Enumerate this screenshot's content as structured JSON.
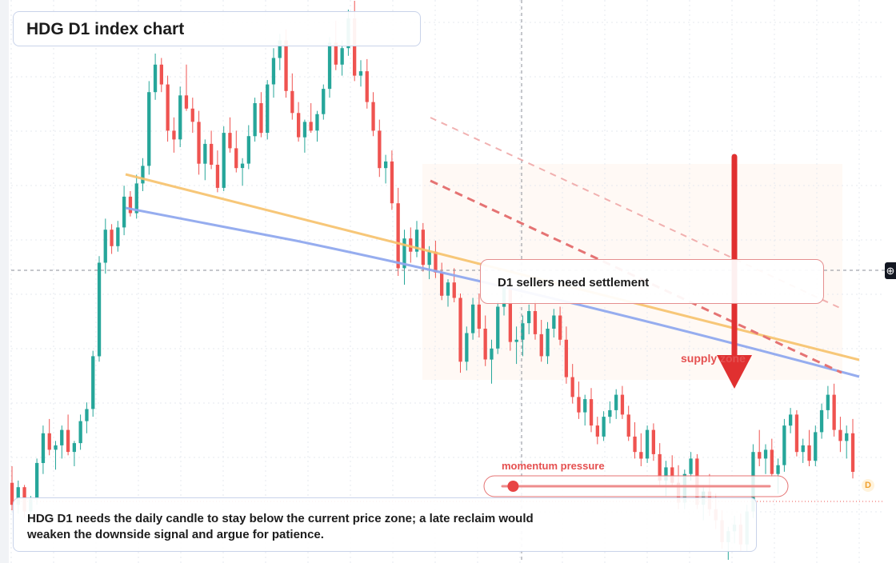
{
  "title": "HDG D1 index chart",
  "annotations": {
    "sellers_note": "D1 sellers need settlement",
    "supply_label": "supply zone",
    "momentum_label": "momentum pressure",
    "summary": "HDG D1 needs the daily candle to stay below the current price zone; a late reclaim would weaken the downside signal and argue for patience."
  },
  "badge": "D",
  "crosshair_icon": "crosshair-plus-icon",
  "colors": {
    "up": "#26a69a",
    "down": "#ef5350",
    "ma_fast": "#f7c26b",
    "ma_slow": "#90a9ee",
    "arrow": "#e03030",
    "channel": "#e57373"
  },
  "momentum_level": 0.04,
  "chart_data": {
    "type": "candlestick",
    "interval": "D1",
    "ohlc": [
      [
        1210,
        1225,
        1185,
        1190
      ],
      [
        1190,
        1212,
        1182,
        1206
      ],
      [
        1206,
        1208,
        1178,
        1184
      ],
      [
        1184,
        1198,
        1172,
        1195
      ],
      [
        1195,
        1232,
        1190,
        1228
      ],
      [
        1228,
        1262,
        1218,
        1255
      ],
      [
        1255,
        1268,
        1235,
        1240
      ],
      [
        1240,
        1248,
        1222,
        1244
      ],
      [
        1244,
        1262,
        1232,
        1258
      ],
      [
        1258,
        1272,
        1235,
        1238
      ],
      [
        1238,
        1248,
        1225,
        1246
      ],
      [
        1246,
        1272,
        1240,
        1266
      ],
      [
        1266,
        1283,
        1255,
        1277
      ],
      [
        1277,
        1330,
        1270,
        1325
      ],
      [
        1325,
        1416,
        1320,
        1410
      ],
      [
        1410,
        1450,
        1400,
        1440
      ],
      [
        1440,
        1445,
        1418,
        1425
      ],
      [
        1425,
        1448,
        1420,
        1442
      ],
      [
        1442,
        1480,
        1435,
        1470
      ],
      [
        1470,
        1475,
        1452,
        1455
      ],
      [
        1455,
        1490,
        1450,
        1482
      ],
      [
        1482,
        1505,
        1475,
        1498
      ],
      [
        1498,
        1575,
        1490,
        1565
      ],
      [
        1565,
        1600,
        1558,
        1590
      ],
      [
        1590,
        1596,
        1565,
        1572
      ],
      [
        1572,
        1580,
        1520,
        1530
      ],
      [
        1530,
        1542,
        1510,
        1522
      ],
      [
        1522,
        1570,
        1515,
        1562
      ],
      [
        1562,
        1590,
        1548,
        1550
      ],
      [
        1550,
        1560,
        1528,
        1538
      ],
      [
        1538,
        1548,
        1490,
        1500
      ],
      [
        1500,
        1522,
        1485,
        1518
      ],
      [
        1518,
        1530,
        1495,
        1499
      ],
      [
        1499,
        1512,
        1474,
        1478
      ],
      [
        1478,
        1534,
        1475,
        1528
      ],
      [
        1528,
        1542,
        1510,
        1514
      ],
      [
        1514,
        1530,
        1492,
        1496
      ],
      [
        1496,
        1505,
        1480,
        1500
      ],
      [
        1500,
        1535,
        1495,
        1525
      ],
      [
        1525,
        1560,
        1520,
        1555
      ],
      [
        1555,
        1565,
        1524,
        1528
      ],
      [
        1528,
        1576,
        1522,
        1572
      ],
      [
        1572,
        1605,
        1560,
        1596
      ],
      [
        1596,
        1618,
        1585,
        1612
      ],
      [
        1612,
        1622,
        1560,
        1566
      ],
      [
        1566,
        1582,
        1540,
        1546
      ],
      [
        1546,
        1556,
        1520,
        1524
      ],
      [
        1524,
        1540,
        1510,
        1538
      ],
      [
        1538,
        1555,
        1528,
        1530
      ],
      [
        1530,
        1548,
        1520,
        1545
      ],
      [
        1545,
        1572,
        1540,
        1568
      ],
      [
        1568,
        1615,
        1560,
        1610
      ],
      [
        1610,
        1630,
        1585,
        1590
      ],
      [
        1590,
        1612,
        1580,
        1605
      ],
      [
        1605,
        1640,
        1598,
        1632
      ],
      [
        1632,
        1648,
        1575,
        1580
      ],
      [
        1580,
        1594,
        1570,
        1584
      ],
      [
        1584,
        1595,
        1550,
        1556
      ],
      [
        1556,
        1565,
        1525,
        1530
      ],
      [
        1530,
        1540,
        1488,
        1496
      ],
      [
        1496,
        1508,
        1482,
        1502
      ],
      [
        1502,
        1512,
        1458,
        1464
      ],
      [
        1464,
        1478,
        1398,
        1405
      ],
      [
        1405,
        1440,
        1390,
        1432
      ],
      [
        1432,
        1442,
        1410,
        1420
      ],
      [
        1420,
        1448,
        1415,
        1440
      ],
      [
        1440,
        1446,
        1402,
        1408
      ],
      [
        1408,
        1425,
        1395,
        1420
      ],
      [
        1420,
        1430,
        1396,
        1401
      ],
      [
        1401,
        1410,
        1376,
        1380
      ],
      [
        1380,
        1395,
        1370,
        1392
      ],
      [
        1392,
        1405,
        1374,
        1378
      ],
      [
        1378,
        1382,
        1310,
        1320
      ],
      [
        1320,
        1352,
        1312,
        1346
      ],
      [
        1346,
        1378,
        1340,
        1372
      ],
      [
        1372,
        1382,
        1342,
        1350
      ],
      [
        1350,
        1362,
        1316,
        1322
      ],
      [
        1322,
        1340,
        1300,
        1332
      ],
      [
        1332,
        1375,
        1327,
        1370
      ],
      [
        1370,
        1392,
        1362,
        1388
      ],
      [
        1388,
        1394,
        1330,
        1338
      ],
      [
        1338,
        1352,
        1318,
        1340
      ],
      [
        1340,
        1362,
        1325,
        1355
      ],
      [
        1355,
        1372,
        1345,
        1366
      ],
      [
        1366,
        1376,
        1340,
        1345
      ],
      [
        1345,
        1358,
        1320,
        1325
      ],
      [
        1325,
        1356,
        1318,
        1350
      ],
      [
        1350,
        1368,
        1342,
        1362
      ],
      [
        1362,
        1370,
        1335,
        1340
      ],
      [
        1340,
        1352,
        1300,
        1306
      ],
      [
        1306,
        1318,
        1282,
        1288
      ],
      [
        1288,
        1302,
        1268,
        1274
      ],
      [
        1274,
        1290,
        1262,
        1286
      ],
      [
        1286,
        1296,
        1256,
        1262
      ],
      [
        1262,
        1270,
        1245,
        1252
      ],
      [
        1252,
        1275,
        1248,
        1270
      ],
      [
        1270,
        1284,
        1264,
        1276
      ],
      [
        1276,
        1295,
        1268,
        1290
      ],
      [
        1290,
        1298,
        1268,
        1272
      ],
      [
        1272,
        1280,
        1248,
        1252
      ],
      [
        1252,
        1265,
        1232,
        1238
      ],
      [
        1238,
        1255,
        1225,
        1232
      ],
      [
        1232,
        1262,
        1228,
        1258
      ],
      [
        1258,
        1264,
        1230,
        1236
      ],
      [
        1236,
        1246,
        1206,
        1212
      ],
      [
        1212,
        1230,
        1198,
        1224
      ],
      [
        1224,
        1235,
        1206,
        1210
      ],
      [
        1210,
        1226,
        1186,
        1192
      ],
      [
        1192,
        1222,
        1186,
        1218
      ],
      [
        1218,
        1238,
        1212,
        1232
      ],
      [
        1232,
        1236,
        1186,
        1190
      ],
      [
        1190,
        1208,
        1176,
        1202
      ],
      [
        1202,
        1218,
        1180,
        1186
      ],
      [
        1186,
        1200,
        1168,
        1176
      ],
      [
        1176,
        1185,
        1150,
        1156
      ],
      [
        1156,
        1170,
        1140,
        1166
      ],
      [
        1166,
        1180,
        1155,
        1172
      ],
      [
        1172,
        1182,
        1148,
        1154
      ],
      [
        1154,
        1190,
        1148,
        1184
      ],
      [
        1184,
        1245,
        1178,
        1238
      ],
      [
        1238,
        1258,
        1225,
        1232
      ],
      [
        1232,
        1245,
        1218,
        1240
      ],
      [
        1240,
        1250,
        1215,
        1218
      ],
      [
        1218,
        1232,
        1200,
        1226
      ],
      [
        1226,
        1268,
        1220,
        1262
      ],
      [
        1262,
        1278,
        1255,
        1272
      ],
      [
        1272,
        1276,
        1234,
        1238
      ],
      [
        1238,
        1250,
        1228,
        1244
      ],
      [
        1244,
        1258,
        1225,
        1230
      ],
      [
        1230,
        1262,
        1225,
        1256
      ],
      [
        1256,
        1282,
        1250,
        1276
      ],
      [
        1276,
        1298,
        1268,
        1290
      ],
      [
        1290,
        1300,
        1252,
        1258
      ],
      [
        1258,
        1270,
        1238,
        1248
      ],
      [
        1248,
        1262,
        1232,
        1255
      ],
      [
        1255,
        1268,
        1214,
        1220
      ]
    ]
  }
}
